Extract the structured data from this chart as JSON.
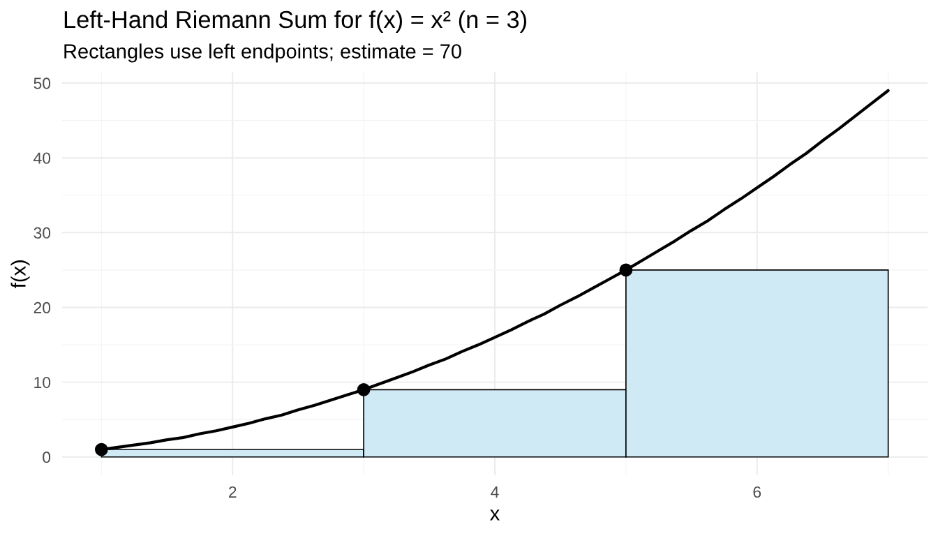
{
  "chart_data": {
    "type": "histogram",
    "title": "Left-Hand Riemann Sum for f(x) = x² (n = 3)",
    "subtitle": "Rectangles use left endpoints; estimate = 70",
    "xlabel": "x",
    "ylabel": "f(x)",
    "series": [
      {
        "bins": [
          1,
          3,
          5,
          7
        ],
        "values": [
          1,
          9,
          25
        ],
        "color": "#cfe9f5"
      },
      {
        "type": "line",
        "color": "#000000",
        "line_style": "solid",
        "x": [
          1.0,
          1.125,
          1.25,
          1.375,
          1.5,
          1.625,
          1.75,
          1.875,
          2.0,
          2.125,
          2.25,
          2.375,
          2.5,
          2.625,
          2.75,
          2.875,
          3.0,
          3.125,
          3.25,
          3.375,
          3.5,
          3.625,
          3.75,
          3.875,
          4.0,
          4.125,
          4.25,
          4.375,
          4.5,
          4.625,
          4.75,
          4.875,
          5.0,
          5.125,
          5.25,
          5.375,
          5.5,
          5.625,
          5.75,
          5.875,
          6.0,
          6.125,
          6.25,
          6.375,
          6.5,
          6.625,
          6.75,
          6.875,
          7.0
        ],
        "values": [
          1.0,
          1.3,
          1.6,
          1.9,
          2.3,
          2.6,
          3.1,
          3.5,
          4.0,
          4.5,
          5.1,
          5.6,
          6.3,
          6.9,
          7.6,
          8.3,
          9.0,
          9.8,
          10.6,
          11.4,
          12.3,
          13.1,
          14.1,
          15.0,
          16.0,
          17.0,
          18.1,
          19.1,
          20.3,
          21.4,
          22.6,
          23.8,
          25.0,
          26.3,
          27.6,
          28.9,
          30.3,
          31.6,
          33.1,
          34.5,
          36.0,
          37.5,
          39.1,
          40.6,
          42.3,
          43.9,
          45.6,
          47.3,
          49.0
        ]
      },
      {
        "type": "scatter",
        "color": "#000000",
        "marker": "circle",
        "x": [
          1,
          3,
          5
        ],
        "values": [
          1,
          9,
          25
        ]
      }
    ],
    "xlim": [
      0.7,
      7.3
    ],
    "xticks": [
      {
        "value": 1,
        "label": null
      },
      2,
      {
        "value": 3,
        "label": null
      },
      4,
      {
        "value": 5,
        "label": null
      },
      6,
      {
        "value": 7,
        "label": null
      }
    ],
    "ylim": [
      -2.45,
      51.45
    ],
    "yticks": [
      0,
      {
        "value": 5,
        "label": null
      },
      10,
      {
        "value": 15,
        "label": null
      },
      20,
      {
        "value": 25,
        "label": null
      },
      30,
      {
        "value": 35,
        "label": null
      },
      40,
      {
        "value": 45,
        "label": null
      },
      50
    ],
    "grid": true
  }
}
